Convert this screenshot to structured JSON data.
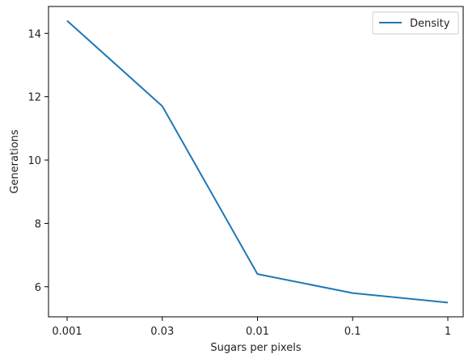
{
  "chart_data": {
    "type": "line",
    "title": "",
    "xlabel": "Sugars per pixels",
    "ylabel": "Generations",
    "categories": [
      "0.001",
      "0.03",
      "0.01",
      "0.1",
      "1"
    ],
    "series": [
      {
        "name": "Density",
        "values": [
          14.4,
          11.7,
          6.4,
          5.8,
          5.5
        ],
        "color": "#1f77b4"
      }
    ],
    "yticks": [
      "6",
      "8",
      "10",
      "12",
      "14"
    ],
    "ylim": [
      5.05,
      14.85
    ],
    "grid": false,
    "legend_position": "top-right"
  }
}
